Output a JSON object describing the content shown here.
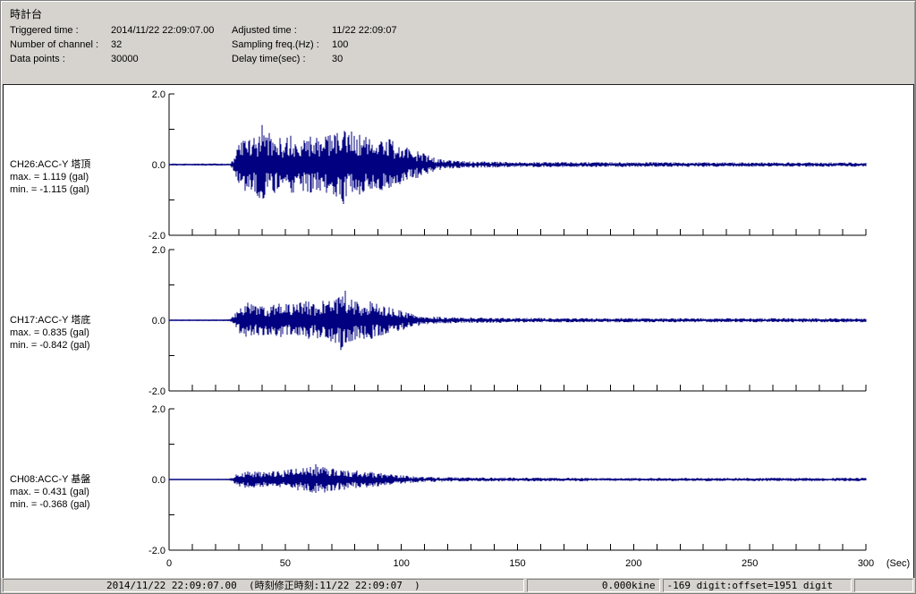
{
  "window": {
    "title": "時計台"
  },
  "header": {
    "left_fields": [
      {
        "label": "Triggered time :",
        "value": "2014/11/22 22:09:07.00"
      },
      {
        "label": "Number of channel :",
        "value": "32"
      },
      {
        "label": "Data points :",
        "value": "30000"
      }
    ],
    "right_fields": [
      {
        "label": "Adjusted time :",
        "value": "11/22 22:09:07"
      },
      {
        "label": "Sampling freq.(Hz) :",
        "value": "100"
      },
      {
        "label": "Delay time(sec) :",
        "value": "30"
      }
    ]
  },
  "channels": [
    {
      "id": "CH26",
      "name": "CH26:ACC-Y 塔頂",
      "max_label": "max. = 1.119 (gal)",
      "min_label": "min. = -1.115 (gal)",
      "max": 1.119,
      "min": -1.115
    },
    {
      "id": "CH17",
      "name": "CH17:ACC-Y 塔底",
      "max_label": "max. = 0.835 (gal)",
      "min_label": "min. = -0.842 (gal)",
      "max": 0.835,
      "min": -0.842
    },
    {
      "id": "CH08",
      "name": "CH08:ACC-Y 基盤",
      "max_label": "max. = 0.431 (gal)",
      "min_label": "min. = -0.368 (gal)",
      "max": 0.431,
      "min": -0.368
    }
  ],
  "axis": {
    "x_min": 0,
    "x_max": 300,
    "x_minor_step": 10,
    "x_tick_labels": [
      "0",
      "50",
      "100",
      "150",
      "200",
      "250",
      "300"
    ],
    "x_unit": "(Sec)",
    "y_min": -2,
    "y_max": 2,
    "y_tick_values": [
      2,
      1,
      0,
      -1,
      -2
    ],
    "y_tick_labels": [
      {
        "text": "2.0",
        "value": 2
      },
      {
        "text": "0.0",
        "value": 0
      },
      {
        "text": "-2.0",
        "value": -2
      }
    ]
  },
  "status_bar": {
    "time_text": "2014/11/22 22:09:07.00  (時刻修正時刻:11/22 22:09:07  )",
    "kine_text": "0.000kine",
    "digit_text": "-169 digit:offset=1951 digit"
  },
  "colors": {
    "waveform": "#000080",
    "window_bg": "#d6d3ce",
    "plot_bg": "#ffffff",
    "axis": "#000000"
  },
  "chart_data": [
    {
      "type": "line",
      "name": "CH26:ACC-Y 塔頂",
      "ylabel": "gal",
      "xlabel": "Sec",
      "x_range": [
        0,
        300
      ],
      "ylim": [
        -2,
        2
      ],
      "max": 1.119,
      "min": -1.115,
      "peaks": [
        {
          "t": 40,
          "v": 1.119
        },
        {
          "t": 75,
          "v": -1.115
        }
      ],
      "envelope": [
        [
          0,
          0.03
        ],
        [
          26,
          0.03
        ],
        [
          28,
          0.2
        ],
        [
          30,
          0.55
        ],
        [
          32,
          0.75
        ],
        [
          36,
          0.7
        ],
        [
          40,
          1.05
        ],
        [
          44,
          0.85
        ],
        [
          48,
          0.75
        ],
        [
          52,
          0.85
        ],
        [
          56,
          0.7
        ],
        [
          60,
          0.8
        ],
        [
          64,
          0.75
        ],
        [
          68,
          0.8
        ],
        [
          72,
          0.9
        ],
        [
          75,
          1.05
        ],
        [
          78,
          0.95
        ],
        [
          82,
          0.85
        ],
        [
          86,
          0.75
        ],
        [
          90,
          0.7
        ],
        [
          94,
          0.75
        ],
        [
          98,
          0.6
        ],
        [
          102,
          0.5
        ],
        [
          106,
          0.4
        ],
        [
          110,
          0.3
        ],
        [
          114,
          0.2
        ],
        [
          118,
          0.13
        ],
        [
          125,
          0.1
        ],
        [
          140,
          0.08
        ],
        [
          160,
          0.07
        ],
        [
          200,
          0.065
        ],
        [
          250,
          0.06
        ],
        [
          300,
          0.06
        ]
      ]
    },
    {
      "type": "line",
      "name": "CH17:ACC-Y 塔底",
      "ylabel": "gal",
      "xlabel": "Sec",
      "x_range": [
        0,
        300
      ],
      "ylim": [
        -2,
        2
      ],
      "max": 0.835,
      "min": -0.842,
      "peaks": [
        {
          "t": 74,
          "v": -0.842
        },
        {
          "t": 76,
          "v": 0.835
        }
      ],
      "envelope": [
        [
          0,
          0.022
        ],
        [
          26,
          0.025
        ],
        [
          28,
          0.15
        ],
        [
          30,
          0.35
        ],
        [
          34,
          0.5
        ],
        [
          38,
          0.45
        ],
        [
          42,
          0.4
        ],
        [
          46,
          0.45
        ],
        [
          50,
          0.5
        ],
        [
          54,
          0.45
        ],
        [
          58,
          0.55
        ],
        [
          62,
          0.5
        ],
        [
          66,
          0.55
        ],
        [
          70,
          0.6
        ],
        [
          74,
          0.78
        ],
        [
          78,
          0.6
        ],
        [
          82,
          0.5
        ],
        [
          86,
          0.55
        ],
        [
          90,
          0.45
        ],
        [
          94,
          0.38
        ],
        [
          98,
          0.32
        ],
        [
          102,
          0.25
        ],
        [
          106,
          0.18
        ],
        [
          110,
          0.12
        ],
        [
          118,
          0.09
        ],
        [
          135,
          0.07
        ],
        [
          170,
          0.06
        ],
        [
          230,
          0.055
        ],
        [
          300,
          0.055
        ]
      ]
    },
    {
      "type": "line",
      "name": "CH08:ACC-Y 基盤",
      "ylabel": "gal",
      "xlabel": "Sec",
      "x_range": [
        0,
        300
      ],
      "ylim": [
        -2,
        2
      ],
      "max": 0.431,
      "min": -0.368,
      "peaks": [
        {
          "t": 63,
          "v": 0.431
        },
        {
          "t": 67,
          "v": -0.368
        }
      ],
      "envelope": [
        [
          0,
          0.02
        ],
        [
          26,
          0.022
        ],
        [
          28,
          0.1
        ],
        [
          30,
          0.2
        ],
        [
          34,
          0.25
        ],
        [
          38,
          0.22
        ],
        [
          42,
          0.2
        ],
        [
          46,
          0.24
        ],
        [
          50,
          0.26
        ],
        [
          54,
          0.3
        ],
        [
          58,
          0.32
        ],
        [
          63,
          0.38
        ],
        [
          68,
          0.33
        ],
        [
          72,
          0.3
        ],
        [
          78,
          0.28
        ],
        [
          84,
          0.23
        ],
        [
          90,
          0.19
        ],
        [
          95,
          0.15
        ],
        [
          100,
          0.12
        ],
        [
          105,
          0.09
        ],
        [
          110,
          0.07
        ],
        [
          125,
          0.06
        ],
        [
          160,
          0.05
        ],
        [
          220,
          0.045
        ],
        [
          300,
          0.045
        ]
      ]
    }
  ]
}
